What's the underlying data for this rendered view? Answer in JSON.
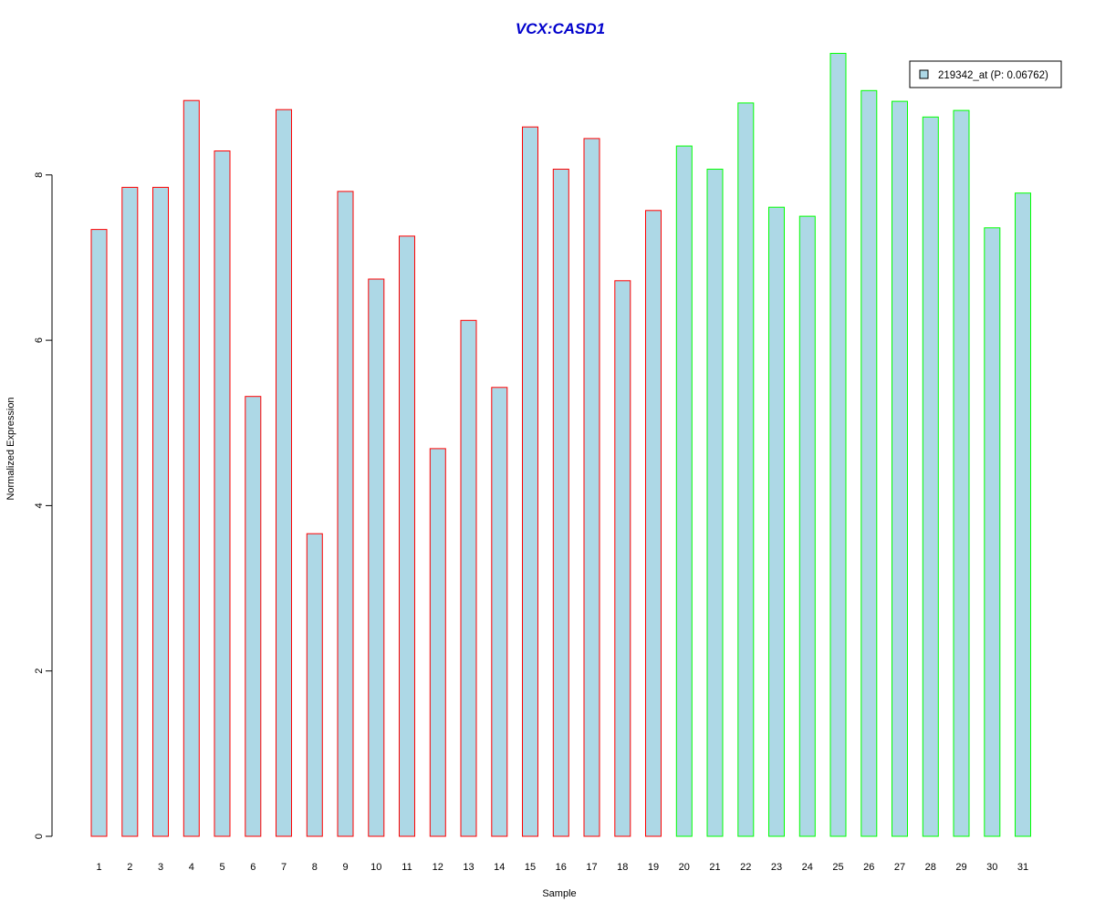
{
  "chart_data": {
    "type": "bar",
    "title": "VCX:CASD1",
    "xlabel": "Sample",
    "ylabel": "Normalized Expression",
    "ylim": [
      0,
      9.5
    ],
    "yticks": [
      0,
      2,
      4,
      6,
      8
    ],
    "categories": [
      "1",
      "2",
      "3",
      "4",
      "5",
      "6",
      "7",
      "8",
      "9",
      "10",
      "11",
      "12",
      "13",
      "14",
      "15",
      "16",
      "17",
      "18",
      "19",
      "20",
      "21",
      "22",
      "23",
      "24",
      "25",
      "26",
      "27",
      "28",
      "29",
      "30",
      "31"
    ],
    "series": [
      {
        "name": "219342_at (P: 0.06762)",
        "values": [
          7.34,
          7.85,
          7.85,
          8.9,
          8.29,
          5.32,
          8.79,
          3.66,
          7.8,
          6.74,
          7.26,
          4.69,
          6.24,
          5.43,
          8.58,
          8.07,
          8.44,
          6.72,
          7.57,
          8.35,
          8.07,
          8.87,
          7.61,
          7.5,
          9.47,
          9.02,
          8.89,
          8.7,
          8.78,
          7.36,
          7.78
        ]
      }
    ],
    "bar_fill": "#add8e6",
    "group_border_colors": [
      "#ff0000",
      "#ff0000",
      "#ff0000",
      "#ff0000",
      "#ff0000",
      "#ff0000",
      "#ff0000",
      "#ff0000",
      "#ff0000",
      "#ff0000",
      "#ff0000",
      "#ff0000",
      "#ff0000",
      "#ff0000",
      "#ff0000",
      "#ff0000",
      "#ff0000",
      "#ff0000",
      "#ff0000",
      "#00ff00",
      "#00ff00",
      "#00ff00",
      "#00ff00",
      "#00ff00",
      "#00ff00",
      "#00ff00",
      "#00ff00",
      "#00ff00",
      "#00ff00",
      "#00ff00",
      "#00ff00"
    ],
    "title_color": "#0000cc",
    "legend_position": "top-right",
    "grid": false
  }
}
